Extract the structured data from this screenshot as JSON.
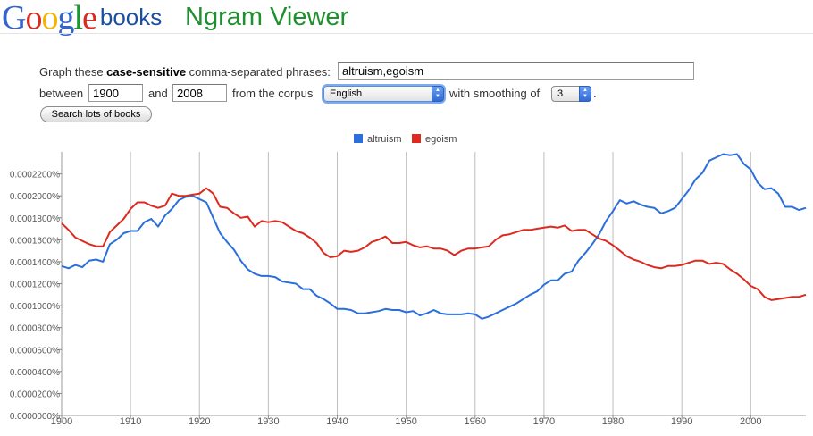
{
  "header": {
    "logo_letters": [
      {
        "ch": "G",
        "color": "#3366cc"
      },
      {
        "ch": "o",
        "color": "#d62d20"
      },
      {
        "ch": "o",
        "color": "#f4b400"
      },
      {
        "ch": "g",
        "color": "#3366cc"
      },
      {
        "ch": "l",
        "color": "#169a2e"
      },
      {
        "ch": "e",
        "color": "#d62d20"
      }
    ],
    "logo_books": "books",
    "app_title": "Ngram Viewer"
  },
  "form": {
    "prefix": "Graph these ",
    "bold": "case-sensitive",
    "suffix": " comma-separated phrases:",
    "phrases_value": "altruism,egoism",
    "between_label": "between",
    "start_year": "1900",
    "and_label": "and",
    "end_year": "2008",
    "corpus_label": "from the corpus",
    "corpus_value": "English",
    "smoothing_label": "with smoothing of",
    "smoothing_value": "3",
    "period": ".",
    "search_button": "Search lots of books"
  },
  "chart_data": {
    "type": "line",
    "x_range": [
      1900,
      2008
    ],
    "y_range": [
      0,
      2.4e-06
    ],
    "x_ticks": [
      {
        "value": 1900,
        "label": "1900"
      },
      {
        "value": 1910,
        "label": "1910"
      },
      {
        "value": 1920,
        "label": "1920"
      },
      {
        "value": 1930,
        "label": "1930"
      },
      {
        "value": 1940,
        "label": "1940"
      },
      {
        "value": 1950,
        "label": "1950"
      },
      {
        "value": 1960,
        "label": "1960"
      },
      {
        "value": 1970,
        "label": "1970"
      },
      {
        "value": 1980,
        "label": "1980"
      },
      {
        "value": 1990,
        "label": "1990"
      },
      {
        "value": 2000,
        "label": "2000"
      }
    ],
    "y_ticks": [
      {
        "value": 0,
        "label": "0.0000000%"
      },
      {
        "value": 2e-07,
        "label": "0.0000200%"
      },
      {
        "value": 4e-07,
        "label": "0.0000400%"
      },
      {
        "value": 6e-07,
        "label": "0.0000600%"
      },
      {
        "value": 8e-07,
        "label": "0.0000800%"
      },
      {
        "value": 1e-06,
        "label": "0.0001000%"
      },
      {
        "value": 1.2e-06,
        "label": "0.0001200%"
      },
      {
        "value": 1.4e-06,
        "label": "0.0001400%"
      },
      {
        "value": 1.6e-06,
        "label": "0.0001600%"
      },
      {
        "value": 1.8e-06,
        "label": "0.0001800%"
      },
      {
        "value": 2e-06,
        "label": "0.0002000%"
      },
      {
        "value": 2.2e-06,
        "label": "0.0002200%"
      }
    ],
    "grid": "vertical lines at each decade",
    "legend_position": "top-center",
    "series": [
      {
        "name": "altruism",
        "color": "#2a6fdb",
        "points": [
          [
            1900,
            1.36e-06
          ],
          [
            1901,
            1.34e-06
          ],
          [
            1902,
            1.37e-06
          ],
          [
            1903,
            1.35e-06
          ],
          [
            1904,
            1.41e-06
          ],
          [
            1905,
            1.42e-06
          ],
          [
            1906,
            1.4e-06
          ],
          [
            1907,
            1.56e-06
          ],
          [
            1908,
            1.6e-06
          ],
          [
            1909,
            1.66e-06
          ],
          [
            1910,
            1.68e-06
          ],
          [
            1911,
            1.68e-06
          ],
          [
            1912,
            1.76e-06
          ],
          [
            1913,
            1.79e-06
          ],
          [
            1914,
            1.72e-06
          ],
          [
            1915,
            1.82e-06
          ],
          [
            1916,
            1.88e-06
          ],
          [
            1917,
            1.96e-06
          ],
          [
            1918,
            1.99e-06
          ],
          [
            1919,
            2e-06
          ],
          [
            1920,
            1.97e-06
          ],
          [
            1921,
            1.94e-06
          ],
          [
            1922,
            1.8e-06
          ],
          [
            1923,
            1.66e-06
          ],
          [
            1924,
            1.58e-06
          ],
          [
            1925,
            1.51e-06
          ],
          [
            1926,
            1.41e-06
          ],
          [
            1927,
            1.33e-06
          ],
          [
            1928,
            1.29e-06
          ],
          [
            1929,
            1.27e-06
          ],
          [
            1930,
            1.27e-06
          ],
          [
            1931,
            1.26e-06
          ],
          [
            1932,
            1.22e-06
          ],
          [
            1933,
            1.21e-06
          ],
          [
            1934,
            1.2e-06
          ],
          [
            1935,
            1.15e-06
          ],
          [
            1936,
            1.15e-06
          ],
          [
            1937,
            1.09e-06
          ],
          [
            1938,
            1.06e-06
          ],
          [
            1939,
            1.02e-06
          ],
          [
            1940,
            9.7e-07
          ],
          [
            1941,
            9.7e-07
          ],
          [
            1942,
            9.6e-07
          ],
          [
            1943,
            9.3e-07
          ],
          [
            1944,
            9.3e-07
          ],
          [
            1945,
            9.4e-07
          ],
          [
            1946,
            9.5e-07
          ],
          [
            1947,
            9.7e-07
          ],
          [
            1948,
            9.6e-07
          ],
          [
            1949,
            9.6e-07
          ],
          [
            1950,
            9.4e-07
          ],
          [
            1951,
            9.5e-07
          ],
          [
            1952,
            9.1e-07
          ],
          [
            1953,
            9.3e-07
          ],
          [
            1954,
            9.6e-07
          ],
          [
            1955,
            9.3e-07
          ],
          [
            1956,
            9.2e-07
          ],
          [
            1957,
            9.2e-07
          ],
          [
            1958,
            9.2e-07
          ],
          [
            1959,
            9.3e-07
          ],
          [
            1960,
            9.2e-07
          ],
          [
            1961,
            8.8e-07
          ],
          [
            1962,
            9e-07
          ],
          [
            1963,
            9.3e-07
          ],
          [
            1964,
            9.6e-07
          ],
          [
            1965,
            9.9e-07
          ],
          [
            1966,
            1.02e-06
          ],
          [
            1967,
            1.06e-06
          ],
          [
            1968,
            1.1e-06
          ],
          [
            1969,
            1.13e-06
          ],
          [
            1970,
            1.19e-06
          ],
          [
            1971,
            1.23e-06
          ],
          [
            1972,
            1.23e-06
          ],
          [
            1973,
            1.29e-06
          ],
          [
            1974,
            1.31e-06
          ],
          [
            1975,
            1.41e-06
          ],
          [
            1976,
            1.48e-06
          ],
          [
            1977,
            1.56e-06
          ],
          [
            1978,
            1.65e-06
          ],
          [
            1979,
            1.77e-06
          ],
          [
            1980,
            1.86e-06
          ],
          [
            1981,
            1.96e-06
          ],
          [
            1982,
            1.93e-06
          ],
          [
            1983,
            1.95e-06
          ],
          [
            1984,
            1.92e-06
          ],
          [
            1985,
            1.9e-06
          ],
          [
            1986,
            1.89e-06
          ],
          [
            1987,
            1.84e-06
          ],
          [
            1988,
            1.86e-06
          ],
          [
            1989,
            1.89e-06
          ],
          [
            1990,
            1.97e-06
          ],
          [
            1991,
            2.05e-06
          ],
          [
            1992,
            2.15e-06
          ],
          [
            1993,
            2.21e-06
          ],
          [
            1994,
            2.32e-06
          ],
          [
            1995,
            2.35e-06
          ],
          [
            1996,
            2.38e-06
          ],
          [
            1997,
            2.37e-06
          ],
          [
            1998,
            2.38e-06
          ],
          [
            1999,
            2.29e-06
          ],
          [
            2000,
            2.24e-06
          ],
          [
            2001,
            2.12e-06
          ],
          [
            2002,
            2.06e-06
          ],
          [
            2003,
            2.07e-06
          ],
          [
            2004,
            2.02e-06
          ],
          [
            2005,
            1.9e-06
          ],
          [
            2006,
            1.9e-06
          ],
          [
            2007,
            1.87e-06
          ],
          [
            2008,
            1.89e-06
          ]
        ]
      },
      {
        "name": "egoism",
        "color": "#dc2a1e",
        "points": [
          [
            1900,
            1.75e-06
          ],
          [
            1901,
            1.69e-06
          ],
          [
            1902,
            1.62e-06
          ],
          [
            1903,
            1.59e-06
          ],
          [
            1904,
            1.56e-06
          ],
          [
            1905,
            1.54e-06
          ],
          [
            1906,
            1.54e-06
          ],
          [
            1907,
            1.67e-06
          ],
          [
            1908,
            1.73e-06
          ],
          [
            1909,
            1.79e-06
          ],
          [
            1910,
            1.88e-06
          ],
          [
            1911,
            1.94e-06
          ],
          [
            1912,
            1.94e-06
          ],
          [
            1913,
            1.91e-06
          ],
          [
            1914,
            1.89e-06
          ],
          [
            1915,
            1.91e-06
          ],
          [
            1916,
            2.02e-06
          ],
          [
            1917,
            2e-06
          ],
          [
            1918,
            2e-06
          ],
          [
            1919,
            2.01e-06
          ],
          [
            1920,
            2.02e-06
          ],
          [
            1921,
            2.07e-06
          ],
          [
            1922,
            2.02e-06
          ],
          [
            1923,
            1.9e-06
          ],
          [
            1924,
            1.89e-06
          ],
          [
            1925,
            1.84e-06
          ],
          [
            1926,
            1.8e-06
          ],
          [
            1927,
            1.81e-06
          ],
          [
            1928,
            1.72e-06
          ],
          [
            1929,
            1.77e-06
          ],
          [
            1930,
            1.76e-06
          ],
          [
            1931,
            1.77e-06
          ],
          [
            1932,
            1.76e-06
          ],
          [
            1933,
            1.72e-06
          ],
          [
            1934,
            1.68e-06
          ],
          [
            1935,
            1.66e-06
          ],
          [
            1936,
            1.62e-06
          ],
          [
            1937,
            1.57e-06
          ],
          [
            1938,
            1.48e-06
          ],
          [
            1939,
            1.44e-06
          ],
          [
            1940,
            1.45e-06
          ],
          [
            1941,
            1.5e-06
          ],
          [
            1942,
            1.49e-06
          ],
          [
            1943,
            1.5e-06
          ],
          [
            1944,
            1.53e-06
          ],
          [
            1945,
            1.58e-06
          ],
          [
            1946,
            1.6e-06
          ],
          [
            1947,
            1.63e-06
          ],
          [
            1948,
            1.57e-06
          ],
          [
            1949,
            1.57e-06
          ],
          [
            1950,
            1.58e-06
          ],
          [
            1951,
            1.55e-06
          ],
          [
            1952,
            1.53e-06
          ],
          [
            1953,
            1.54e-06
          ],
          [
            1954,
            1.52e-06
          ],
          [
            1955,
            1.52e-06
          ],
          [
            1956,
            1.5e-06
          ],
          [
            1957,
            1.46e-06
          ],
          [
            1958,
            1.5e-06
          ],
          [
            1959,
            1.52e-06
          ],
          [
            1960,
            1.52e-06
          ],
          [
            1961,
            1.53e-06
          ],
          [
            1962,
            1.54e-06
          ],
          [
            1963,
            1.6e-06
          ],
          [
            1964,
            1.64e-06
          ],
          [
            1965,
            1.65e-06
          ],
          [
            1966,
            1.67e-06
          ],
          [
            1967,
            1.69e-06
          ],
          [
            1968,
            1.69e-06
          ],
          [
            1969,
            1.7e-06
          ],
          [
            1970,
            1.71e-06
          ],
          [
            1971,
            1.72e-06
          ],
          [
            1972,
            1.71e-06
          ],
          [
            1973,
            1.73e-06
          ],
          [
            1974,
            1.68e-06
          ],
          [
            1975,
            1.69e-06
          ],
          [
            1976,
            1.69e-06
          ],
          [
            1977,
            1.65e-06
          ],
          [
            1978,
            1.61e-06
          ],
          [
            1979,
            1.59e-06
          ],
          [
            1980,
            1.55e-06
          ],
          [
            1981,
            1.5e-06
          ],
          [
            1982,
            1.45e-06
          ],
          [
            1983,
            1.42e-06
          ],
          [
            1984,
            1.4e-06
          ],
          [
            1985,
            1.37e-06
          ],
          [
            1986,
            1.35e-06
          ],
          [
            1987,
            1.34e-06
          ],
          [
            1988,
            1.36e-06
          ],
          [
            1989,
            1.36e-06
          ],
          [
            1990,
            1.37e-06
          ],
          [
            1991,
            1.39e-06
          ],
          [
            1992,
            1.41e-06
          ],
          [
            1993,
            1.41e-06
          ],
          [
            1994,
            1.38e-06
          ],
          [
            1995,
            1.39e-06
          ],
          [
            1996,
            1.38e-06
          ],
          [
            1997,
            1.33e-06
          ],
          [
            1998,
            1.29e-06
          ],
          [
            1999,
            1.24e-06
          ],
          [
            2000,
            1.18e-06
          ],
          [
            2001,
            1.15e-06
          ],
          [
            2002,
            1.08e-06
          ],
          [
            2003,
            1.05e-06
          ],
          [
            2004,
            1.06e-06
          ],
          [
            2005,
            1.07e-06
          ],
          [
            2006,
            1.08e-06
          ],
          [
            2007,
            1.08e-06
          ],
          [
            2008,
            1.1e-06
          ]
        ]
      }
    ]
  }
}
